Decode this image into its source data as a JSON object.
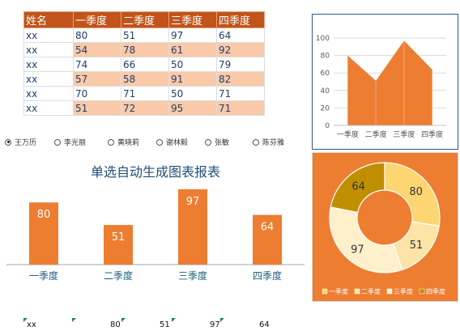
{
  "table": {
    "headers": [
      "姓名",
      "一季度",
      "二季度",
      "三季度",
      "四季度"
    ],
    "rows": [
      [
        "xx",
        "80",
        "51",
        "97",
        "64"
      ],
      [
        "xx",
        "54",
        "78",
        "61",
        "92"
      ],
      [
        "xx",
        "74",
        "66",
        "50",
        "79"
      ],
      [
        "xx",
        "57",
        "58",
        "91",
        "82"
      ],
      [
        "xx",
        "70",
        "71",
        "50",
        "71"
      ],
      [
        "xx",
        "51",
        "72",
        "95",
        "71"
      ]
    ]
  },
  "radios": {
    "options": [
      "王万历",
      "李光丽",
      "黄晓莉",
      "谢林毅",
      "张敏",
      "陈芬雅"
    ],
    "selected": "王万历"
  },
  "bottom_row": [
    "xx",
    "80",
    "51",
    "97",
    "64"
  ],
  "colors": {
    "header": "#c0541a",
    "alt_row": "#f9c9a8",
    "orange": "#ed7d31",
    "title": "#1f4e79",
    "donut": [
      "#fdd672",
      "#fbe4a6",
      "#fff0cc",
      "#bf8f00"
    ]
  },
  "chart_data": [
    {
      "type": "area",
      "categories": [
        "一季度",
        "二季度",
        "三季度",
        "四季度"
      ],
      "values": [
        80,
        51,
        97,
        64
      ],
      "ylim": [
        0,
        100
      ],
      "yticks": [
        "0",
        "20",
        "40",
        "60",
        "80",
        "100"
      ],
      "grid": true
    },
    {
      "type": "bar",
      "title": "单选自动生成图表报表",
      "categories": [
        "一季度",
        "二季度",
        "三季度",
        "四季度"
      ],
      "values": [
        80,
        51,
        97,
        64
      ],
      "value_labels": [
        "80",
        "51",
        "97",
        "64"
      ]
    },
    {
      "type": "pie",
      "categories": [
        "一季度",
        "二季度",
        "三季度",
        "四季度"
      ],
      "values": [
        80,
        51,
        97,
        64
      ],
      "value_labels": [
        "80",
        "51",
        "97",
        "64"
      ],
      "legend": "bottom"
    }
  ]
}
